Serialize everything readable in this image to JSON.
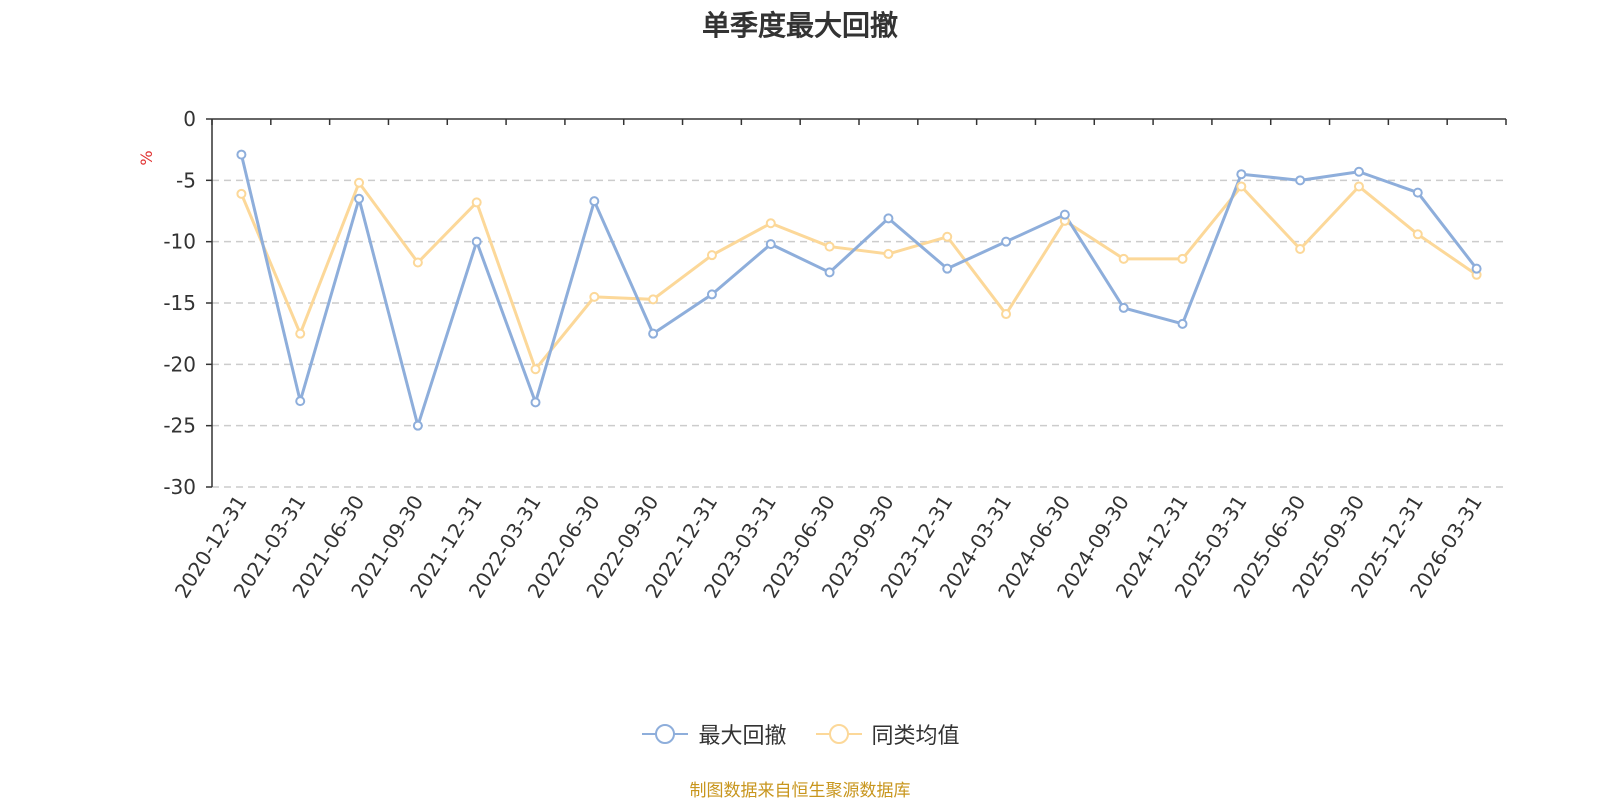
{
  "chart_data": {
    "type": "line",
    "title": "单季度最大回撤",
    "ylabel": "%",
    "xlabel": "",
    "ylim": [
      -30,
      0
    ],
    "yticks": [
      0,
      -5,
      -10,
      -15,
      -20,
      -25,
      -30
    ],
    "grid": true,
    "legend_position": "bottom",
    "categories": [
      "2020-12-31",
      "2021-03-31",
      "2021-06-30",
      "2021-09-30",
      "2021-12-31",
      "2022-03-31",
      "2022-06-30",
      "2022-09-30",
      "2022-12-31",
      "2023-03-31",
      "2023-06-30",
      "2023-09-30",
      "2023-12-31",
      "2024-03-31",
      "2024-06-30",
      "2024-09-30",
      "2024-12-31",
      "2025-03-31",
      "2025-06-30",
      "2025-09-30",
      "2025-12-31",
      "2026-03-31"
    ],
    "series": [
      {
        "name": "最大回撤",
        "color": "#8eaedb",
        "values": [
          -2.9,
          -23.0,
          -6.5,
          -25.0,
          -10.0,
          -23.1,
          -6.7,
          -17.5,
          -14.3,
          -10.2,
          -12.5,
          -8.1,
          -12.2,
          -10.0,
          -7.8,
          -15.4,
          -16.7,
          -4.5,
          -5.0,
          -4.3,
          -6.0,
          -12.2
        ]
      },
      {
        "name": "同类均值",
        "color": "#fcd899",
        "values": [
          -6.1,
          -17.5,
          -5.2,
          -11.7,
          -6.8,
          -20.4,
          -14.5,
          -14.7,
          -11.1,
          -8.5,
          -10.4,
          -11.0,
          -9.6,
          -15.9,
          -8.3,
          -11.4,
          -11.4,
          -5.5,
          -10.6,
          -5.5,
          -9.4,
          -12.7
        ]
      }
    ]
  },
  "colors": {
    "axis": "#333333",
    "grid": "#cccccc",
    "ylabel": "#e03030",
    "source": "#c8961e"
  },
  "source_note": "制图数据来自恒生聚源数据库"
}
